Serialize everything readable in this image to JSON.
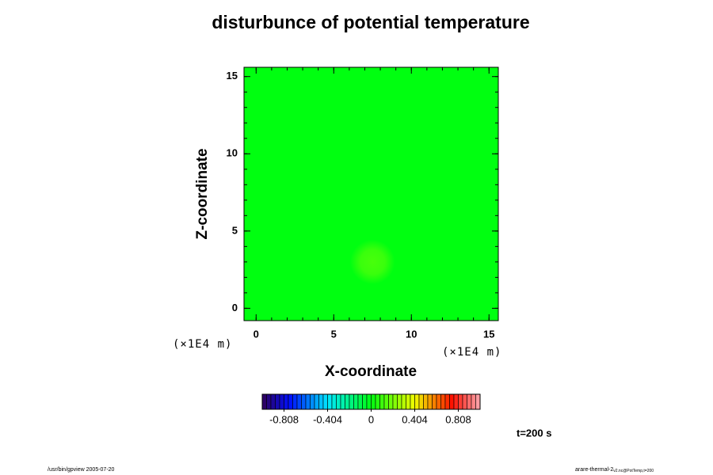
{
  "chart_data": {
    "type": "heatmap",
    "title": "disturbunce of potential temperature",
    "x_label": "X-coordinate",
    "y_label": "Z-coordinate",
    "x_unit": "(×1E4 m)",
    "y_unit": "(×1E4 m)",
    "xlim": [
      -0.78,
      15.6
    ],
    "ylim": [
      -0.8,
      15.6
    ],
    "xticks": [
      0,
      5,
      10,
      15
    ],
    "yticks": [
      0,
      5,
      10,
      15
    ],
    "minor_tick_step": 1,
    "field": {
      "background": 0,
      "peak": {
        "x": 7.5,
        "y": 3,
        "value": 0.12,
        "radius": 0.9
      }
    },
    "colorbar": {
      "range": [
        -1.01,
        1.01
      ],
      "bins": 50,
      "ticks": [
        -0.808,
        -0.404,
        0,
        0.404,
        0.808
      ],
      "colormap": [
        {
          "value": -1.01,
          "color": "#30005a"
        },
        {
          "value": -0.75,
          "color": "#0010ff"
        },
        {
          "value": -0.4,
          "color": "#00e8ff"
        },
        {
          "value": 0,
          "color": "#00ff10"
        },
        {
          "value": 0.4,
          "color": "#f0ff00"
        },
        {
          "value": 0.75,
          "color": "#ff1000"
        },
        {
          "value": 1.01,
          "color": "#ffa8b0"
        }
      ]
    },
    "time_label": "t=200 s",
    "footer_left": "/usr/bin/gpview 2005-07-20",
    "footer_right": "arare-thermal-2",
    "footer_right_sub": "v2.nc@PotTemp,t=200"
  }
}
